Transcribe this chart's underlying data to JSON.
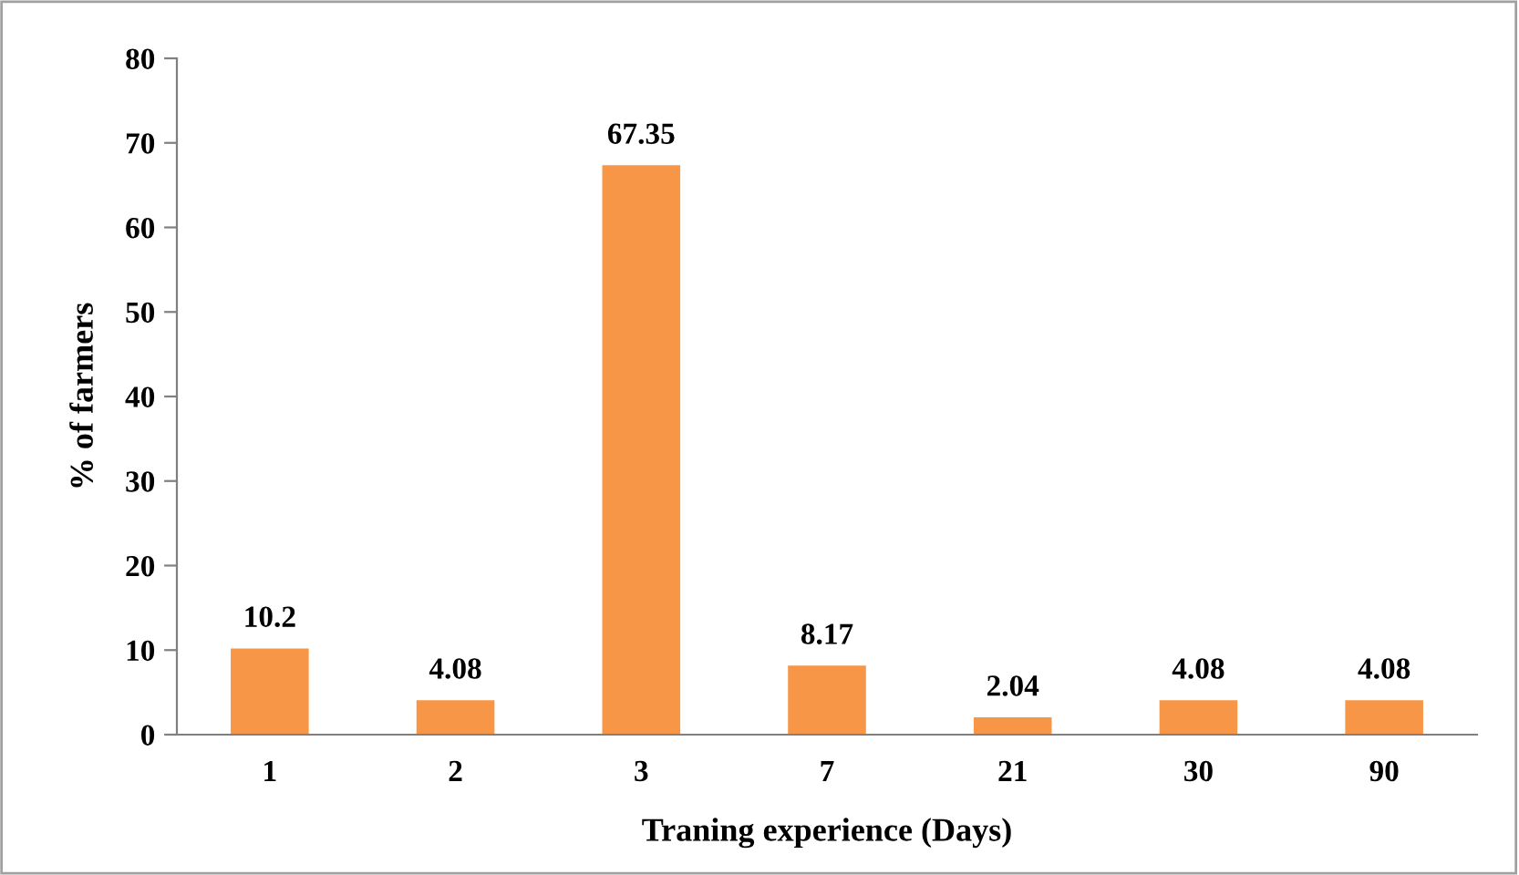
{
  "chart_data": {
    "type": "bar",
    "xlabel": "Traning experience (Days)",
    "ylabel": "% of farmers",
    "categories": [
      "1",
      "2",
      "3",
      "7",
      "21",
      "30",
      "90"
    ],
    "values": [
      10.2,
      4.08,
      67.35,
      8.17,
      2.04,
      4.08,
      4.08
    ],
    "color": "#f79646",
    "ylim": [
      0,
      80
    ],
    "yticks": [
      0,
      10,
      20,
      30,
      40,
      50,
      60,
      70,
      80
    ],
    "grid": false,
    "data_labels": true
  }
}
